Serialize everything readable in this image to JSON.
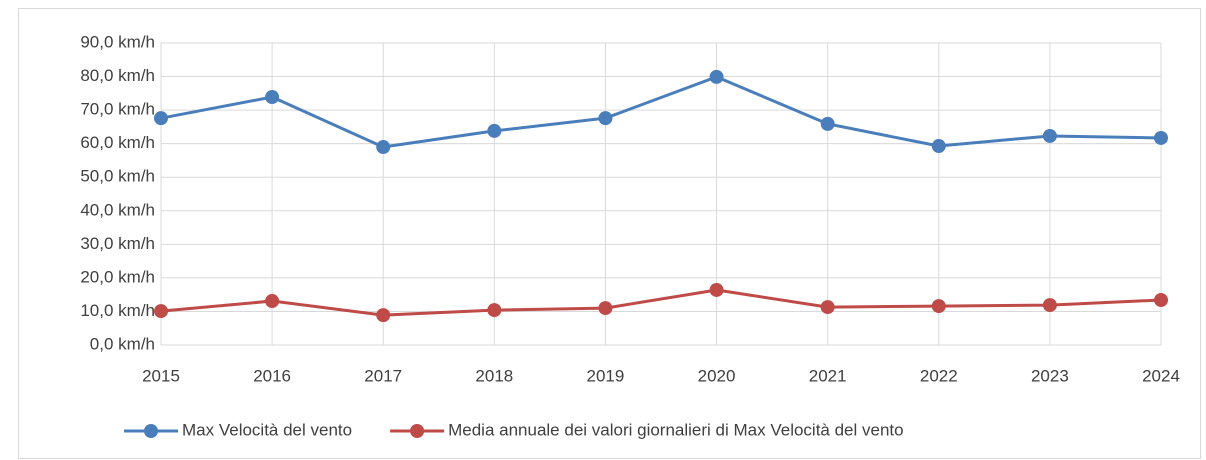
{
  "chart_data": {
    "type": "line",
    "categories": [
      "2015",
      "2016",
      "2017",
      "2018",
      "2019",
      "2020",
      "2021",
      "2022",
      "2023",
      "2024"
    ],
    "series": [
      {
        "name": "Max Velocità del vento",
        "color": "#4a7ebb",
        "values": [
          67.6,
          73.9,
          59.0,
          63.8,
          67.6,
          79.9,
          65.9,
          59.3,
          62.3,
          61.7
        ]
      },
      {
        "name": "Media annuale dei valori giornalieri di Max Velocità del vento",
        "color": "#be4b48",
        "values": [
          10.1,
          13.1,
          8.9,
          10.4,
          11.0,
          16.4,
          11.3,
          11.6,
          11.9,
          13.4
        ]
      }
    ],
    "ylim": [
      0,
      90
    ],
    "yticks": [
      {
        "value": 0,
        "label": "0,0 km/h"
      },
      {
        "value": 10,
        "label": "10,0 km/h"
      },
      {
        "value": 20,
        "label": "20,0 km/h"
      },
      {
        "value": 30,
        "label": "30,0 km/h"
      },
      {
        "value": 40,
        "label": "40,0 km/h"
      },
      {
        "value": 50,
        "label": "50,0 km/h"
      },
      {
        "value": 60,
        "label": "60,0 km/h"
      },
      {
        "value": 70,
        "label": "70,0 km/h"
      },
      {
        "value": 80,
        "label": "80,0 km/h"
      },
      {
        "value": 90,
        "label": "90,0 km/h"
      }
    ],
    "grid": true,
    "legend": "bottom"
  }
}
